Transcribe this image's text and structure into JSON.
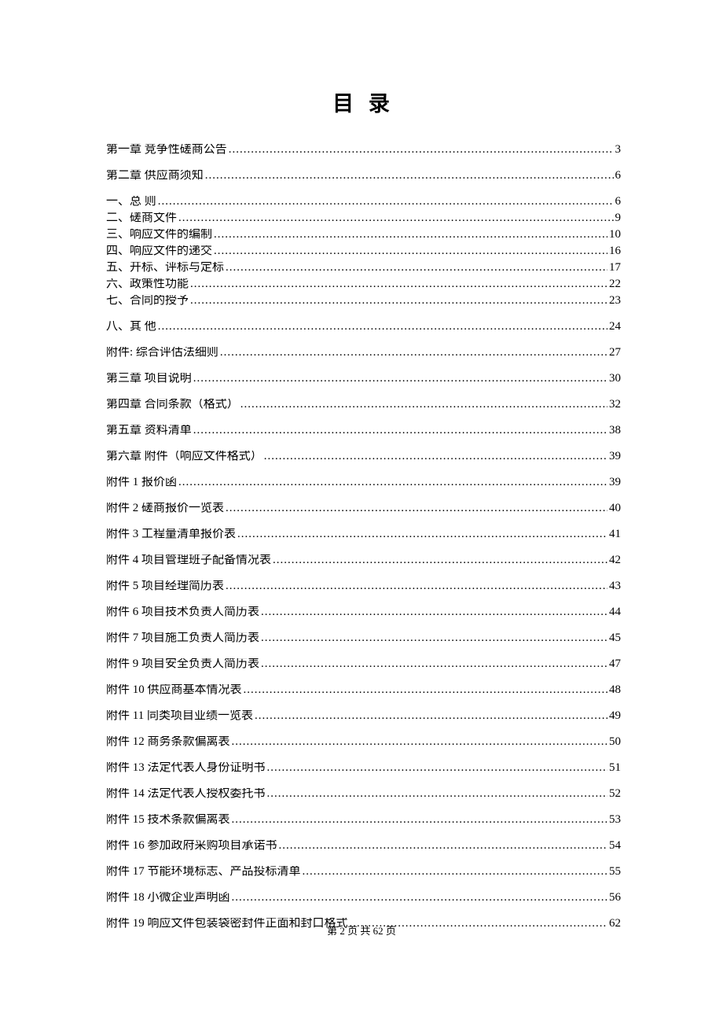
{
  "title": "目 录",
  "footer": {
    "text": "第 2 页 共 62 页"
  },
  "colors": {
    "text": "#000000",
    "background": "#ffffff"
  },
  "typography": {
    "body_fontsize": 15,
    "title_fontsize": 27,
    "footer_fontsize": 13,
    "font_family": "SimSun"
  },
  "entries": [
    {
      "label": "第一章  竞争性磋商公告",
      "page": "3",
      "gap": "spaced"
    },
    {
      "label": "第二章   供应商须知",
      "page": "6",
      "gap": "spaced"
    },
    {
      "label": "一、总 则",
      "page": "6",
      "gap": "tight"
    },
    {
      "label": "二、磋商文件",
      "page": "9",
      "gap": "tight"
    },
    {
      "label": "三、响应文件的编制",
      "page": "10",
      "gap": "tight"
    },
    {
      "label": "四、响应文件的递交",
      "page": "16",
      "gap": "tight"
    },
    {
      "label": "五、开标、评标与定标",
      "page": "17",
      "gap": "tight"
    },
    {
      "label": "六、政策性功能",
      "page": "22",
      "gap": "tight"
    },
    {
      "label": "七、合同的授予",
      "page": "23",
      "gap": "spaced"
    },
    {
      "label": "八、其 他",
      "page": "24",
      "gap": "spaced"
    },
    {
      "label": "附件:  综合评估法细则",
      "page": "27",
      "gap": "spaced"
    },
    {
      "label": "第三章   项目说明",
      "page": "30",
      "gap": "spaced"
    },
    {
      "label": "第四章   合同条款（格式）",
      "page": "32",
      "gap": "spaced"
    },
    {
      "label": "第五章   资料清单",
      "page": "38",
      "gap": "spaced"
    },
    {
      "label": "第六章   附件（响应文件格式）",
      "page": "39",
      "gap": "spaced"
    },
    {
      "label": "附件 1   报价函",
      "page": "39",
      "gap": "spaced"
    },
    {
      "label": "附件 2   磋商报价一览表",
      "page": "40",
      "gap": "spaced"
    },
    {
      "label": "附件 3 工程量清单报价表",
      "page": "41",
      "gap": "spaced"
    },
    {
      "label": "附件 4 项目管理班子配备情况表",
      "page": "42",
      "gap": "spaced"
    },
    {
      "label": "附件 5 项目经理简历表",
      "page": "43",
      "gap": "spaced"
    },
    {
      "label": "附件 6 项目技术负责人简历表",
      "page": "44",
      "gap": "spaced"
    },
    {
      "label": "附件 7 项目施工负责人简历表",
      "page": "45",
      "gap": "spaced"
    },
    {
      "label": "附件 9 项目安全负责人简历表",
      "page": "47",
      "gap": "spaced"
    },
    {
      "label": "附件 10 供应商基本情况表",
      "page": "48",
      "gap": "spaced"
    },
    {
      "label": "附件 11 同类项目业绩一览表",
      "page": "49",
      "gap": "spaced"
    },
    {
      "label": "附件 12   商务条款偏离表",
      "page": "50",
      "gap": "spaced"
    },
    {
      "label": "附件 13 法定代表人身份证明书",
      "page": "51",
      "gap": "spaced"
    },
    {
      "label": "附件 14 法定代表人授权委托书",
      "page": "52",
      "gap": "spaced"
    },
    {
      "label": "附件 15   技术条款偏离表",
      "page": "53",
      "gap": "spaced"
    },
    {
      "label": "附件 16   参加政府采购项目承诺书",
      "page": "54",
      "gap": "spaced"
    },
    {
      "label": "附件 17   节能环境标志、产品投标清单",
      "page": "55",
      "gap": "spaced"
    },
    {
      "label": "附件 18   小微企业声明函",
      "page": "56",
      "gap": "spaced"
    },
    {
      "label": "附件 19 响应文件包装袋密封件正面和封口格式",
      "page": "62",
      "gap": "spaced"
    }
  ]
}
